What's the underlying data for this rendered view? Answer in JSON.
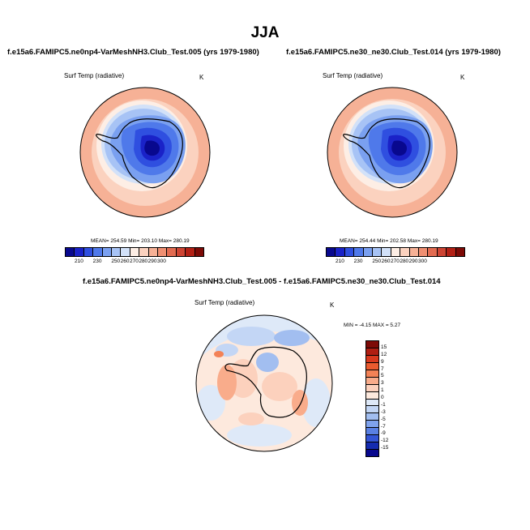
{
  "title": "JJA",
  "panels": [
    {
      "title": "f.e15a6.FAMIPC5.ne0np4-VarMeshNH3.Club_Test.005 (yrs 1979-1980)",
      "variable": "Surf Temp (radiative)",
      "units": "K",
      "stats": "MEAN= 254.59  Min= 203.10  Max= 280.19",
      "colorbar_labels": [
        "210",
        "230",
        "250",
        "260",
        "270",
        "280",
        "290",
        "300"
      ]
    },
    {
      "title": "f.e15a6.FAMIPC5.ne30_ne30.Club_Test.014 (yrs 1979-1980)",
      "variable": "Surf Temp (radiative)",
      "units": "K",
      "stats": "MEAN= 254.44  Min= 202.58  Max= 280.19",
      "colorbar_labels": [
        "210",
        "230",
        "250",
        "260",
        "270",
        "280",
        "290",
        "300"
      ]
    }
  ],
  "diff": {
    "title": "f.e15a6.FAMIPC5.ne0np4-VarMeshNH3.Club_Test.005 - f.e15a6.FAMIPC5.ne30_ne30.Club_Test.014",
    "variable": "Surf Temp (radiative)",
    "units": "K",
    "stats": "MIN =  -4.15 MAX =   5.27",
    "colorbar_labels": [
      "15",
      "12",
      "9",
      "7",
      "5",
      "3",
      "1",
      "0",
      "-1",
      "-3",
      "-5",
      "-7",
      "-9",
      "-12",
      "-15"
    ]
  },
  "colors": {
    "abs_scale": [
      "#08088e",
      "#1a22c8",
      "#2f4fe0",
      "#4f79ea",
      "#7aa0f0",
      "#a7c3f5",
      "#d2e1f8",
      "#fdeee5",
      "#fbd2bf",
      "#f6b196",
      "#ef8f72",
      "#e26b51",
      "#ce4433",
      "#b32015",
      "#7d0a06"
    ],
    "diff_scale": [
      "#7d0a06",
      "#b01e12",
      "#d8391e",
      "#ea5b2f",
      "#f38256",
      "#f9ac8b",
      "#fcd1bd",
      "#fde9dd",
      "#dee9f8",
      "#c3d6f5",
      "#a2bef0",
      "#7fa2ec",
      "#5a80e3",
      "#3455d6",
      "#142bb0",
      "#08088e"
    ]
  }
}
